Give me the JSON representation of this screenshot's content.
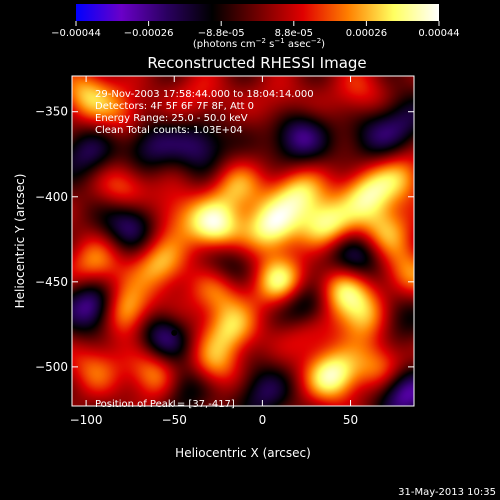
{
  "chart_data": {
    "type": "heatmap",
    "title": "Reconstructed RHESSI Image",
    "xlabel": "Heliocentric X (arcsec)",
    "ylabel": "Heliocentric Y (arcsec)",
    "xlim": [
      -108,
      86
    ],
    "ylim": [
      -523,
      -329
    ],
    "xticks": [
      -100,
      -50,
      0,
      50
    ],
    "xtick_labels": [
      "-100",
      "-50",
      "0",
      "50"
    ],
    "yticks": [
      -350,
      -400,
      -450,
      -500
    ],
    "ytick_labels": [
      "-350",
      "-400",
      "-450",
      "-500"
    ],
    "colorbar": {
      "range": [
        -0.00044,
        0.00044
      ],
      "tick_labels": [
        "-0.00044",
        "-0.00026",
        "-8.8e-05",
        "8.8e-05",
        "0.00026",
        "0.00044"
      ],
      "unit_label": "(photons cm^-2 s^-1 asec^-2)",
      "colors": [
        "#0000ff",
        "#6a00c8",
        "#2a0060",
        "#000000",
        "#700000",
        "#e00000",
        "#ff8000",
        "#ffff60",
        "#ffffff"
      ]
    },
    "annotations": {
      "time": "29-Nov-2003 17:58:44.000 to 18:04:14.000",
      "detectors": "Detectors: 4F 5F 6F 7F 8F, Att 0",
      "energy": "Energy Range: 25.0 - 50.0 keV",
      "clean": "Clean     Total counts: 1.03E+04",
      "peak": "Position of Peak = [37,-417]"
    },
    "peak": [
      37,
      -417
    ],
    "sources": [
      {
        "x": -100,
        "y": -340,
        "v": 0.7
      },
      {
        "x": -78,
        "y": -350,
        "v": 0.45
      },
      {
        "x": -35,
        "y": -342,
        "v": 0.35
      },
      {
        "x": 10,
        "y": -345,
        "v": 0.3
      },
      {
        "x": 55,
        "y": -340,
        "v": 0.4
      },
      {
        "x": -78,
        "y": -395,
        "v": 0.55
      },
      {
        "x": -50,
        "y": -410,
        "v": 0.45
      },
      {
        "x": -15,
        "y": -395,
        "v": 0.6
      },
      {
        "x": 20,
        "y": -398,
        "v": 0.8
      },
      {
        "x": 60,
        "y": -398,
        "v": 0.85
      },
      {
        "x": 80,
        "y": -388,
        "v": 0.55
      },
      {
        "x": -27,
        "y": -418,
        "v": 1.0
      },
      {
        "x": 5,
        "y": -418,
        "v": 0.95
      },
      {
        "x": 37,
        "y": -417,
        "v": 1.0
      },
      {
        "x": 70,
        "y": -420,
        "v": 0.65
      },
      {
        "x": -95,
        "y": -440,
        "v": 0.6
      },
      {
        "x": -58,
        "y": -440,
        "v": 0.7
      },
      {
        "x": -25,
        "y": -455,
        "v": 0.55
      },
      {
        "x": 10,
        "y": -450,
        "v": 0.9
      },
      {
        "x": 45,
        "y": -455,
        "v": 0.85
      },
      {
        "x": 82,
        "y": -445,
        "v": 0.6
      },
      {
        "x": -78,
        "y": -467,
        "v": 0.95
      },
      {
        "x": -50,
        "y": -475,
        "v": 0.45
      },
      {
        "x": -18,
        "y": -478,
        "v": 0.7
      },
      {
        "x": 25,
        "y": -478,
        "v": 0.5
      },
      {
        "x": 58,
        "y": -470,
        "v": 0.8
      },
      {
        "x": -95,
        "y": -500,
        "v": 0.5
      },
      {
        "x": -60,
        "y": -505,
        "v": 0.75
      },
      {
        "x": -28,
        "y": -500,
        "v": 0.6
      },
      {
        "x": 40,
        "y": -505,
        "v": 1.0
      },
      {
        "x": 68,
        "y": -500,
        "v": 0.6
      },
      {
        "x": -75,
        "y": -415,
        "v": -0.7
      },
      {
        "x": -35,
        "y": -370,
        "v": -0.6
      },
      {
        "x": -65,
        "y": -370,
        "v": -0.55
      },
      {
        "x": 40,
        "y": -430,
        "v": -0.3
      },
      {
        "x": 20,
        "y": -365,
        "v": -0.7
      },
      {
        "x": -95,
        "y": -465,
        "v": -0.95
      },
      {
        "x": -55,
        "y": -480,
        "v": -1.0
      },
      {
        "x": -20,
        "y": -440,
        "v": -0.45
      },
      {
        "x": 55,
        "y": -438,
        "v": -0.55
      },
      {
        "x": 25,
        "y": -465,
        "v": -0.8
      },
      {
        "x": 75,
        "y": -470,
        "v": -0.45
      },
      {
        "x": -45,
        "y": -510,
        "v": -0.6
      },
      {
        "x": 0,
        "y": -515,
        "v": -0.5
      },
      {
        "x": 80,
        "y": -515,
        "v": -0.85
      },
      {
        "x": 80,
        "y": -355,
        "v": -0.45
      },
      {
        "x": -100,
        "y": -375,
        "v": -0.5
      },
      {
        "x": 62,
        "y": -365,
        "v": -0.45
      }
    ]
  },
  "footer": {
    "date": "31-May-2013 10:35"
  }
}
